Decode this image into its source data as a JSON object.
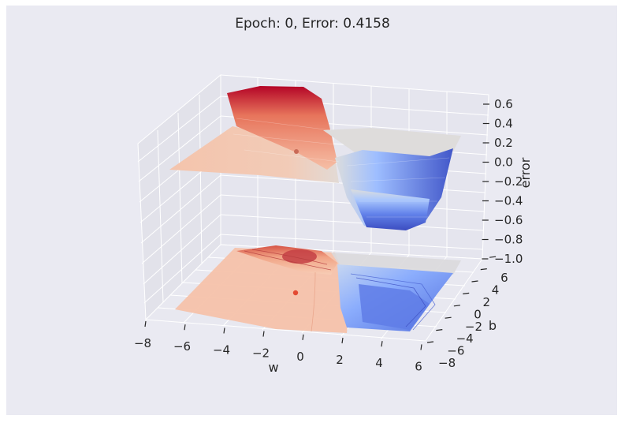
{
  "chart_data": {
    "type": "surface3d",
    "title": "Epoch:  0, Error: 0.4158",
    "xlabel": "w",
    "ylabel": "b",
    "zlabel": "error",
    "x_ticks": [
      -8,
      -6,
      -4,
      -2,
      0,
      2,
      4,
      6
    ],
    "y_ticks": [
      -8,
      -6,
      -4,
      -2,
      0,
      2,
      4,
      6
    ],
    "z_ticks": [
      "0.6",
      "0.4",
      "0.2",
      "0.0",
      "−0.2",
      "−0.4",
      "−0.6",
      "−0.8",
      "−1.0"
    ],
    "xlim": [
      -8,
      6
    ],
    "ylim": [
      -8,
      6
    ],
    "zlim": [
      -1.0,
      0.6
    ],
    "colormap": "coolwarm",
    "grid": true,
    "current_point": {
      "w": 0,
      "b": 0,
      "error": 0.4158
    },
    "components": [
      "surface",
      "contour projection on floor",
      "current parameter marker"
    ]
  }
}
